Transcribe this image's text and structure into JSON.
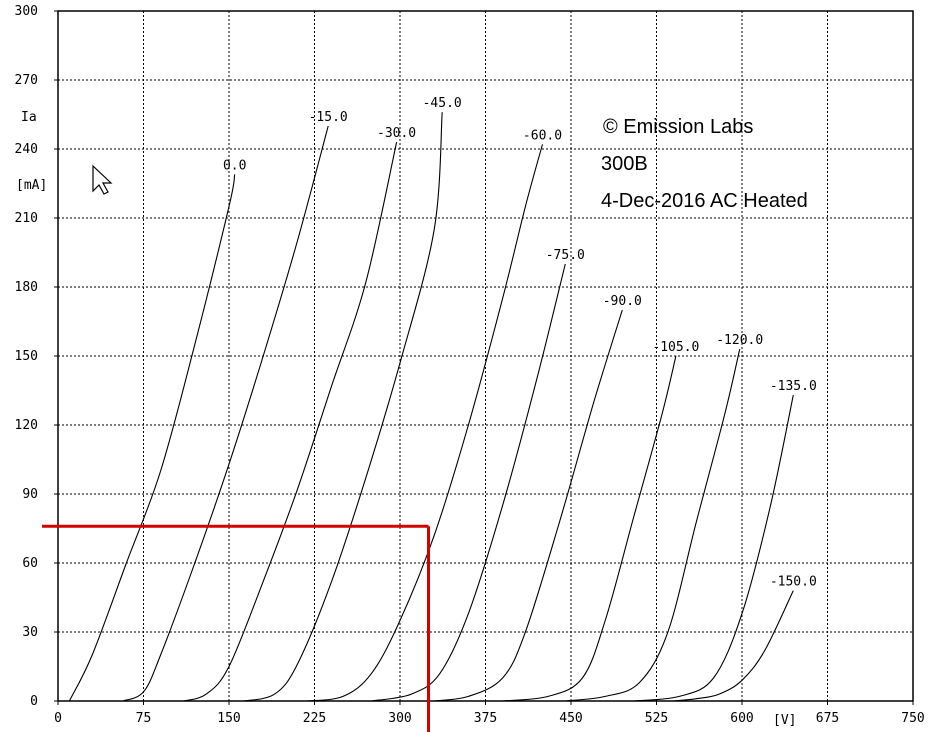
{
  "chart_data": {
    "type": "line",
    "ylabel": "Ia",
    "yunit": "[mA]",
    "xunit": "[V]",
    "xlim": [
      0,
      750
    ],
    "ylim": [
      0,
      300
    ],
    "x_ticks": [
      0,
      75,
      150,
      225,
      300,
      375,
      450,
      525,
      600,
      675,
      750
    ],
    "y_ticks": [
      0,
      30,
      60,
      90,
      120,
      150,
      180,
      210,
      240,
      270,
      300
    ],
    "grid": true,
    "annotations": [
      "© Emission Labs",
      "300B",
      "4-Dec-2016 AC Heated"
    ],
    "series": [
      {
        "name": "0.0",
        "points": [
          [
            10,
            0
          ],
          [
            30,
            20
          ],
          [
            60,
            60
          ],
          [
            90,
            100
          ],
          [
            120,
            155
          ],
          [
            150,
            215
          ],
          [
            155,
            229
          ]
        ]
      },
      {
        "name": "-15.0",
        "points": [
          [
            57,
            0
          ],
          [
            75,
            4
          ],
          [
            90,
            20
          ],
          [
            120,
            60
          ],
          [
            150,
            103
          ],
          [
            180,
            150
          ],
          [
            210,
            200
          ],
          [
            237,
            250
          ]
        ]
      },
      {
        "name": "-30.0",
        "points": [
          [
            110,
            0
          ],
          [
            130,
            3
          ],
          [
            150,
            15
          ],
          [
            180,
            52
          ],
          [
            210,
            92
          ],
          [
            240,
            137
          ],
          [
            270,
            182
          ],
          [
            297,
            243
          ]
        ]
      },
      {
        "name": "-45.0",
        "points": [
          [
            163,
            0
          ],
          [
            190,
            3
          ],
          [
            210,
            16
          ],
          [
            240,
            52
          ],
          [
            270,
            97
          ],
          [
            300,
            147
          ],
          [
            330,
            205
          ],
          [
            337,
            256
          ]
        ]
      },
      {
        "name": "-60.0",
        "points": [
          [
            218,
            0
          ],
          [
            250,
            2
          ],
          [
            275,
            12
          ],
          [
            300,
            35
          ],
          [
            330,
            72
          ],
          [
            360,
            120
          ],
          [
            390,
            175
          ],
          [
            410,
            215
          ],
          [
            425,
            242
          ]
        ]
      },
      {
        "name": "-75.0",
        "points": [
          [
            275,
            0
          ],
          [
            310,
            3
          ],
          [
            335,
            12
          ],
          [
            360,
            38
          ],
          [
            390,
            85
          ],
          [
            420,
            140
          ],
          [
            445,
            190
          ]
        ]
      },
      {
        "name": "-90.0",
        "points": [
          [
            330,
            0
          ],
          [
            360,
            2
          ],
          [
            390,
            10
          ],
          [
            410,
            30
          ],
          [
            440,
            78
          ],
          [
            470,
            130
          ],
          [
            495,
            170
          ]
        ]
      },
      {
        "name": "-105.0",
        "points": [
          [
            390,
            0
          ],
          [
            430,
            2
          ],
          [
            460,
            10
          ],
          [
            480,
            35
          ],
          [
            505,
            80
          ],
          [
            530,
            125
          ],
          [
            542,
            150
          ]
        ]
      },
      {
        "name": "-120.0",
        "points": [
          [
            445,
            0
          ],
          [
            480,
            2
          ],
          [
            510,
            8
          ],
          [
            535,
            30
          ],
          [
            560,
            78
          ],
          [
            585,
            125
          ],
          [
            598,
            153
          ]
        ]
      },
      {
        "name": "-135.0",
        "points": [
          [
            505,
            0
          ],
          [
            545,
            2
          ],
          [
            575,
            10
          ],
          [
            600,
            38
          ],
          [
            625,
            85
          ],
          [
            645,
            133
          ]
        ]
      },
      {
        "name": "-150.0",
        "points": [
          [
            540,
            0
          ],
          [
            560,
            1
          ],
          [
            580,
            3
          ],
          [
            600,
            9
          ],
          [
            620,
            22
          ],
          [
            645,
            48
          ]
        ]
      }
    ],
    "load_point": {
      "x": 325,
      "y": 76,
      "color": "#d40000"
    }
  },
  "curve_color": "#000000",
  "grid_color": "#000000"
}
